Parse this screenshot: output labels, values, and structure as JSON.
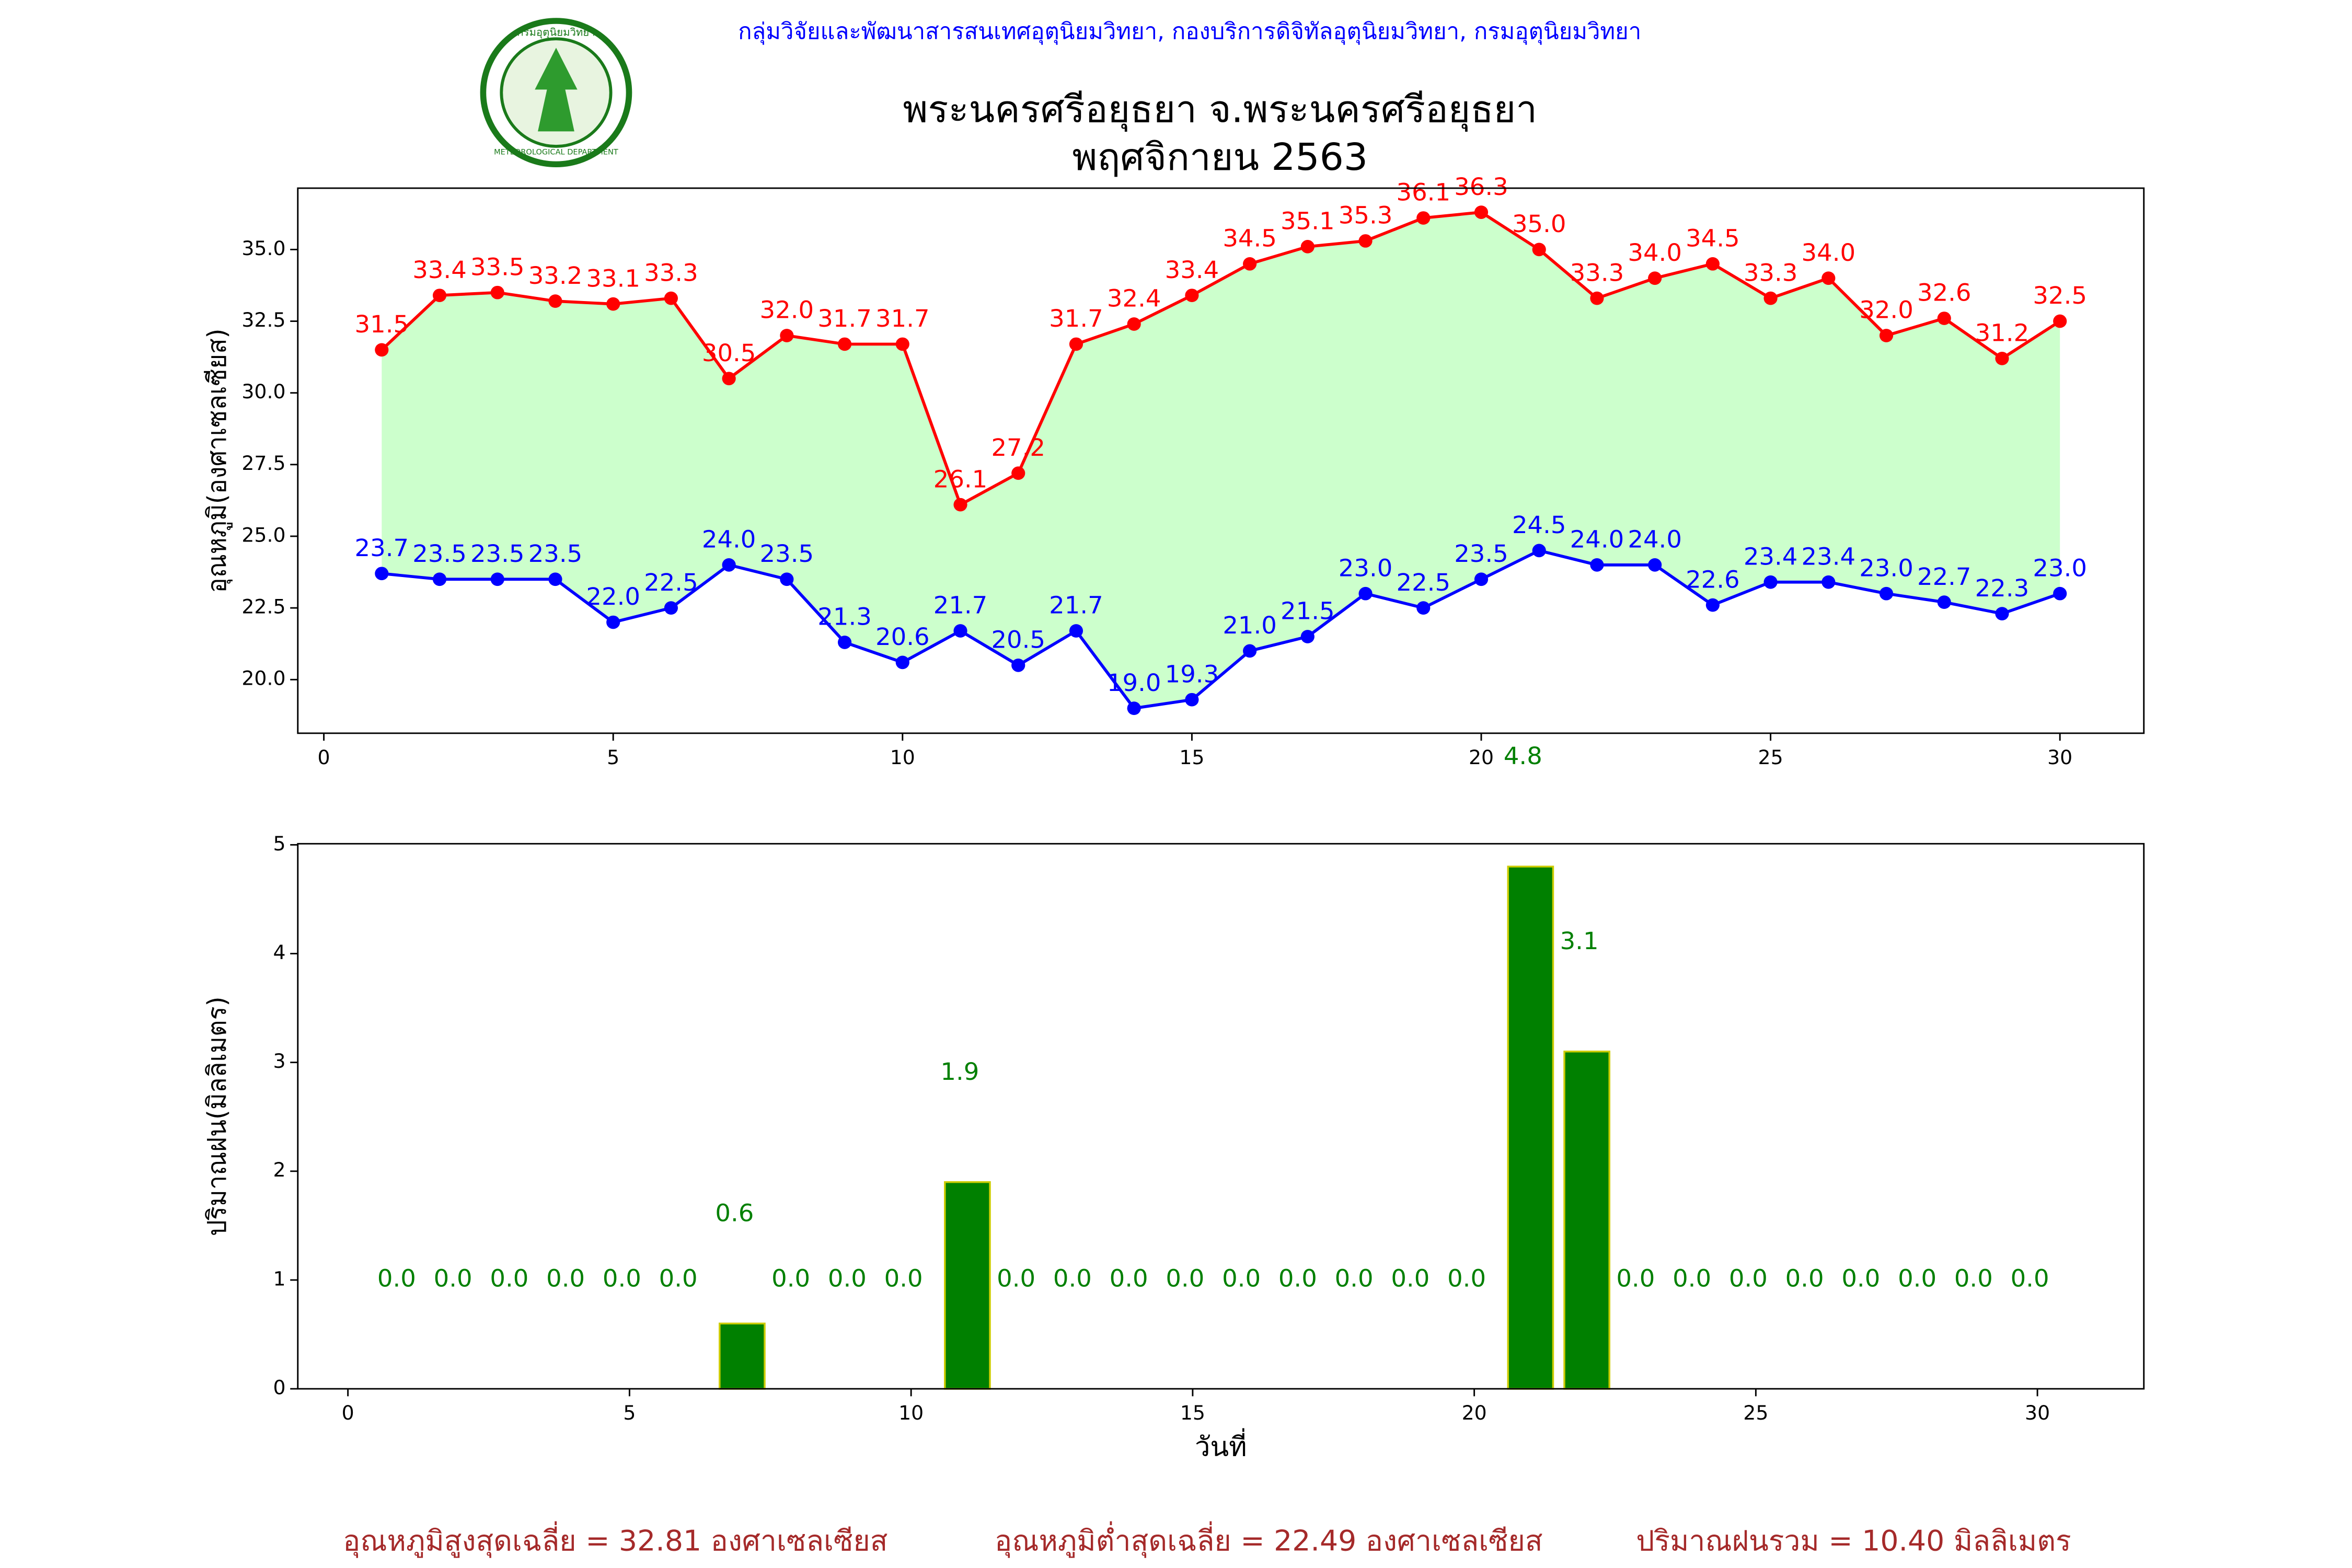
{
  "header": {
    "organization": "กลุ่มวิจัยและพัฒนาสารสนเทศอุตุนิยมวิทยา, กองบริการดิจิทัลอุตุนิยมวิทยา, กรมอุตุนิยมวิทยา",
    "title": "พระนครศรีอยุธยา จ.พระนครศรีอยุธยา",
    "subtitle": "พฤศจิกายน 2563",
    "logo_top": "กรมอุตุนิยมวิทยา",
    "logo_bottom": "METEOROLOGICAL DEPARTMENT"
  },
  "chart_data": [
    {
      "type": "line",
      "ylabel": "อุณหภูมิ(องศาเซลเซียส)",
      "fill_between": true,
      "fill_color": "#ccffcc",
      "x": [
        1,
        2,
        3,
        4,
        5,
        6,
        7,
        8,
        9,
        10,
        11,
        12,
        13,
        14,
        15,
        16,
        17,
        18,
        19,
        20,
        21,
        22,
        23,
        24,
        25,
        26,
        27,
        28,
        29,
        30
      ],
      "series": [
        {
          "color": "#ff0000",
          "values": [
            31.5,
            33.4,
            33.5,
            33.2,
            33.1,
            33.3,
            30.5,
            32.0,
            31.7,
            31.7,
            26.1,
            27.2,
            31.7,
            32.4,
            33.4,
            34.5,
            35.1,
            35.3,
            36.1,
            36.3,
            35.0,
            33.3,
            34.0,
            34.5,
            33.3,
            34.0,
            32.0,
            32.6,
            31.2,
            32.5
          ],
          "value_labels": [
            "31.5",
            "33.4",
            "33.5",
            "33.2",
            "33.1",
            "33.3",
            "30.5",
            "32.0",
            "31.7",
            "31.7",
            "26.1",
            "27.2",
            "31.7",
            "32.4",
            "33.4",
            "34.5",
            "35.1",
            "35.3",
            "36.1",
            "36.3",
            "35.0",
            "33.3",
            "34.0",
            "34.5",
            "33.3",
            "34.0",
            "32.0",
            "32.6",
            "31.2",
            "32.5"
          ]
        },
        {
          "color": "#0000ff",
          "values": [
            23.7,
            23.5,
            23.5,
            23.5,
            22.0,
            22.5,
            24.0,
            23.5,
            21.3,
            20.6,
            21.7,
            20.5,
            21.7,
            19.0,
            19.3,
            21.0,
            21.5,
            23.0,
            22.5,
            23.5,
            24.5,
            24.0,
            24.0,
            22.6,
            23.4,
            23.4,
            23.0,
            22.7,
            22.3,
            23.0
          ],
          "value_labels": [
            "23.7",
            "23.5",
            "23.5",
            "23.5",
            "22.0",
            "22.5",
            "24.0",
            "23.5",
            "21.3",
            "20.6",
            "21.7",
            "20.5",
            "21.7",
            "19.0",
            "19.3",
            "21.0",
            "21.5",
            "23.0",
            "22.5",
            "23.5",
            "24.5",
            "24.0",
            "24.0",
            "22.6",
            "23.4",
            "23.4",
            "23.0",
            "22.7",
            "22.3",
            "23.0"
          ]
        }
      ],
      "xlim": [
        -0.45,
        31.45
      ],
      "xticks": [
        0,
        5,
        10,
        15,
        20,
        25,
        30
      ],
      "ylim": [
        18.13,
        37.14
      ],
      "yticks": [
        {
          "value": 20,
          "label": "20.0"
        },
        {
          "value": 22.5,
          "label": "22.5"
        },
        {
          "value": 25,
          "label": "25.0"
        },
        {
          "value": 27.5,
          "label": "27.5"
        },
        {
          "value": 30,
          "label": "30.0"
        },
        {
          "value": 32.5,
          "label": "32.5"
        },
        {
          "value": 35,
          "label": "35.0"
        }
      ]
    },
    {
      "type": "bar",
      "xlabel": "วันที่",
      "ylabel": "ปริมาณฝน(มิลลิเมตร)",
      "color": "#008000",
      "edgecolor": "#cccc00",
      "label_color": "#008000",
      "x": [
        1,
        2,
        3,
        4,
        5,
        6,
        7,
        8,
        9,
        10,
        11,
        12,
        13,
        14,
        15,
        16,
        17,
        18,
        19,
        20,
        21,
        22,
        23,
        24,
        25,
        26,
        27,
        28,
        29,
        30
      ],
      "values": [
        0,
        0,
        0,
        0,
        0,
        0,
        0.6,
        0,
        0,
        0,
        1.9,
        0,
        0,
        0,
        0,
        0,
        0,
        0,
        0,
        0,
        4.8,
        3.1,
        0,
        0,
        0,
        0,
        0,
        0,
        0,
        0
      ],
      "value_labels": [
        "0.0",
        "0.0",
        "0.0",
        "0.0",
        "0.0",
        "0.0",
        "0.6",
        "0.0",
        "0.0",
        "0.0",
        "1.9",
        "0.0",
        "0.0",
        "0.0",
        "0.0",
        "0.0",
        "0.0",
        "0.0",
        "0.0",
        "0.0",
        "4.8",
        "3.1",
        "0.0",
        "0.0",
        "0.0",
        "0.0",
        "0.0",
        "0.0",
        "0.0",
        "0.0"
      ],
      "xlim": [
        -0.89,
        31.89
      ],
      "xticks": [
        0,
        5,
        10,
        15,
        20,
        25,
        30
      ],
      "ylim": [
        0,
        5.01
      ],
      "yticks": [
        0,
        1,
        2,
        3,
        4,
        5
      ]
    }
  ],
  "footer": [
    "อุณหภูมิสูงสุดเฉลี่ย = 32.81 องศาเซลเซียส",
    "อุณหภูมิต่ำสุดเฉลี่ย = 22.49 องศาเซลเซียส",
    "ปริมาณฝนรวม = 10.40 มิลลิเมตร"
  ]
}
